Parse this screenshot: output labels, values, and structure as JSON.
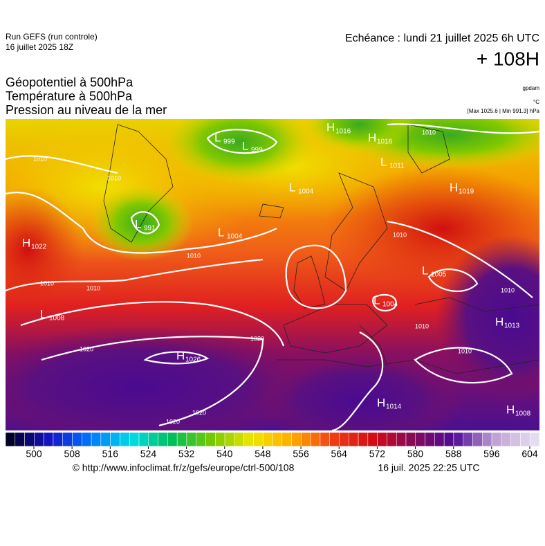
{
  "header": {
    "run": "Run GEFS (run controle)",
    "run_date": "16 juillet 2025 18Z",
    "valid": "Echéance : lundi 21 juillet 2025 6h UTC",
    "lead": "+ 108H"
  },
  "titles": [
    "Géopotentiel à 500hPa",
    "Température à 500hPa",
    "Pression au niveau de la mer"
  ],
  "units": {
    "geopotential": "gpdam",
    "temperature": "°C",
    "pressure": "[Max 1025.6 | Min 991.3] hPa"
  },
  "map": {
    "centers": [
      {
        "kind": "H",
        "value": "1016"
      },
      {
        "kind": "L",
        "value": "999"
      },
      {
        "kind": "L",
        "value": "999"
      },
      {
        "kind": "H",
        "value": "1016"
      },
      {
        "kind": "L",
        "value": "1011"
      },
      {
        "kind": "L",
        "value": "1004"
      },
      {
        "kind": "H",
        "value": "1019"
      },
      {
        "kind": "L",
        "value": "991"
      },
      {
        "kind": "L",
        "value": "1004"
      },
      {
        "kind": "H",
        "value": "1022"
      },
      {
        "kind": "L",
        "value": "1005"
      },
      {
        "kind": "L",
        "value": "1004"
      },
      {
        "kind": "L",
        "value": "1008"
      },
      {
        "kind": "H",
        "value": "1013"
      },
      {
        "kind": "H",
        "value": "1026"
      },
      {
        "kind": "H",
        "value": "1014"
      },
      {
        "kind": "H",
        "value": "1008"
      }
    ],
    "isobar_labels": [
      "1010",
      "1010",
      "1010",
      "1010",
      "1010",
      "1010",
      "1010",
      "1010",
      "1010",
      "1010",
      "1020",
      "1020",
      "1020",
      "1020"
    ]
  },
  "colorbar": {
    "ticks": [
      500,
      508,
      516,
      524,
      532,
      540,
      548,
      556,
      564,
      572,
      580,
      588,
      596,
      604
    ]
  },
  "footer": {
    "source": "© http://www.infoclimat.fr/z/gefs/europe/ctrl-500/108",
    "generated": "16 juil. 2025 22:25 UTC"
  }
}
